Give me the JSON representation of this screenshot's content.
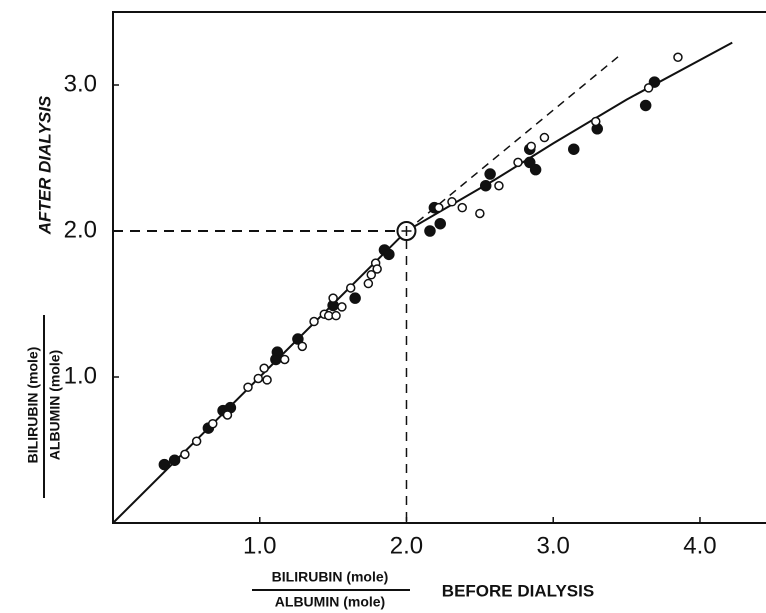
{
  "chart_data": {
    "type": "scatter",
    "x_label": {
      "numerator": "BILIRUBIN (mole)",
      "denominator": "ALBUMIN (mole)",
      "text": "BEFORE DIALYSIS"
    },
    "y_label": {
      "numerator": "BILIRUBIN (mole)",
      "denominator": "ALBUMIN (mole)",
      "text": "AFTER DIALYSIS"
    },
    "xlim": [
      0,
      4.45
    ],
    "ylim": [
      0,
      3.5
    ],
    "xticks": [
      {
        "value": 1,
        "label": "1.0"
      },
      {
        "value": 2,
        "label": "2.0"
      },
      {
        "value": 3,
        "label": "3.0"
      },
      {
        "value": 4,
        "label": "4.0"
      }
    ],
    "yticks": [
      {
        "value": 1,
        "label": "1.0"
      },
      {
        "value": 2,
        "label": "2.0"
      },
      {
        "value": 3,
        "label": "3.0"
      }
    ],
    "series": [
      {
        "marker": "filled",
        "color": "#111111",
        "x": [
          0.35,
          0.42,
          0.65,
          0.75,
          0.8,
          1.12,
          1.11,
          1.26,
          1.5,
          1.65,
          1.85,
          1.88,
          2.16,
          2.19,
          2.23,
          2.54,
          2.57,
          2.84,
          2.84,
          2.88,
          3.14,
          3.3,
          3.63,
          3.69
        ],
        "values": [
          0.4,
          0.43,
          0.65,
          0.77,
          0.79,
          1.17,
          1.12,
          1.26,
          1.49,
          1.54,
          1.87,
          1.84,
          2.0,
          2.16,
          2.05,
          2.31,
          2.39,
          2.56,
          2.47,
          2.42,
          2.56,
          2.7,
          2.86,
          3.02
        ]
      },
      {
        "marker": "open",
        "color": "#111111",
        "x": [
          0.49,
          0.57,
          0.68,
          0.78,
          0.92,
          0.99,
          1.03,
          1.05,
          1.17,
          1.29,
          1.37,
          1.44,
          1.47,
          1.5,
          1.52,
          1.56,
          1.62,
          1.74,
          1.76,
          1.79,
          1.8,
          2.22,
          2.31,
          2.38,
          2.5,
          2.63,
          2.76,
          2.85,
          2.94,
          3.29,
          3.65,
          3.85
        ],
        "values": [
          0.47,
          0.56,
          0.68,
          0.74,
          0.93,
          0.99,
          1.06,
          0.98,
          1.12,
          1.21,
          1.38,
          1.43,
          1.42,
          1.54,
          1.42,
          1.48,
          1.61,
          1.64,
          1.7,
          1.78,
          1.74,
          2.16,
          2.2,
          2.16,
          2.12,
          2.31,
          2.47,
          2.58,
          2.64,
          2.75,
          2.98,
          3.19
        ]
      }
    ],
    "fit_line": {
      "x": [
        0,
        2,
        2.6,
        3.0,
        3.5,
        4.22
      ],
      "y": [
        0,
        2,
        2.35,
        2.6,
        2.9,
        3.29
      ]
    },
    "identity_line": {
      "x": [
        2,
        3.45
      ],
      "y": [
        2,
        3.2
      ]
    },
    "reference_point": {
      "x": 2,
      "y": 2
    }
  }
}
